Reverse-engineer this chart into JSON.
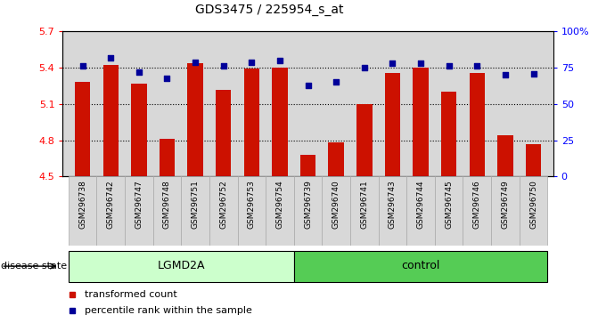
{
  "title": "GDS3475 / 225954_s_at",
  "samples": [
    "GSM296738",
    "GSM296742",
    "GSM296747",
    "GSM296748",
    "GSM296751",
    "GSM296752",
    "GSM296753",
    "GSM296754",
    "GSM296739",
    "GSM296740",
    "GSM296741",
    "GSM296743",
    "GSM296744",
    "GSM296745",
    "GSM296746",
    "GSM296749",
    "GSM296750"
  ],
  "bar_values": [
    5.28,
    5.42,
    5.27,
    4.81,
    5.44,
    5.22,
    5.39,
    5.4,
    4.68,
    4.78,
    5.1,
    5.36,
    5.4,
    5.2,
    5.36,
    4.84,
    4.77
  ],
  "dot_values": [
    76,
    82,
    72,
    68,
    79,
    76,
    79,
    80,
    63,
    65,
    75,
    78,
    78,
    76,
    76,
    70,
    71
  ],
  "groups": [
    {
      "label": "LGMD2A",
      "start": 0,
      "end": 7,
      "color": "#ccffcc"
    },
    {
      "label": "control",
      "start": 8,
      "end": 16,
      "color": "#55cc55"
    }
  ],
  "disease_state_label": "disease state",
  "bar_color": "#cc1100",
  "dot_color": "#000099",
  "ylim_left": [
    4.5,
    5.7
  ],
  "ylim_right": [
    0,
    100
  ],
  "yticks_left": [
    4.5,
    4.8,
    5.1,
    5.4,
    5.7
  ],
  "yticks_right": [
    0,
    25,
    50,
    75,
    100
  ],
  "ytick_labels_right": [
    "0",
    "25",
    "50",
    "75",
    "100%"
  ],
  "hlines": [
    4.8,
    5.1,
    5.4
  ],
  "legend_bar": "transformed count",
  "legend_dot": "percentile rank within the sample",
  "plot_bg_color": "#d8d8d8",
  "xticklabel_bg": "#d8d8d8"
}
